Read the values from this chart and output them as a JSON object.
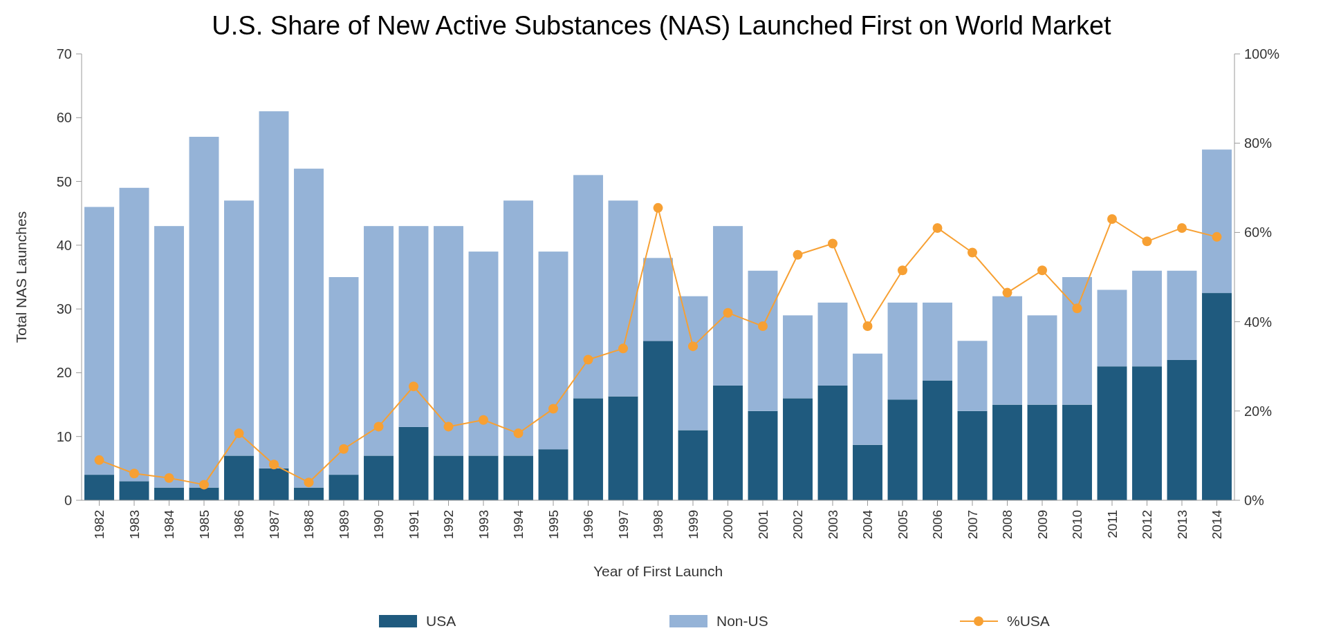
{
  "chart_data": {
    "type": "bar",
    "title": "U.S. Share of New Active Substances (NAS) Launched First on World Market",
    "xlabel": "Year of First Launch",
    "ylabel": "Total NAS Launches",
    "stacked": true,
    "legend": "bottom",
    "marker": "circle",
    "categories": [
      "1982",
      "1983",
      "1984",
      "1985",
      "1986",
      "1987",
      "1988",
      "1989",
      "1990",
      "1991",
      "1992",
      "1993",
      "1994",
      "1995",
      "1996",
      "1997",
      "1998",
      "1999",
      "2000",
      "2001",
      "2002",
      "2003",
      "2004",
      "2005",
      "2006",
      "2007",
      "2008",
      "2009",
      "2010",
      "2011",
      "2012",
      "2013",
      "2014"
    ],
    "ylim": [
      0,
      70
    ],
    "yticks": [
      0,
      10,
      20,
      30,
      40,
      50,
      60,
      70
    ],
    "y2lim": [
      0,
      100
    ],
    "y2ticks": [
      {
        "value": 0,
        "label": "0%"
      },
      {
        "value": 20,
        "label": "20%"
      },
      {
        "value": 40,
        "label": "40%"
      },
      {
        "value": 60,
        "label": "60%"
      },
      {
        "value": 80,
        "label": "80%"
      },
      {
        "value": 100,
        "label": "100%"
      }
    ],
    "series": [
      {
        "name": "USA",
        "color": "#1f5a7e",
        "values": [
          4,
          3,
          2,
          2,
          7,
          5,
          2,
          4,
          7,
          11.5,
          7,
          7,
          7,
          8,
          16,
          16.3,
          25,
          11,
          18,
          14,
          16,
          18,
          8.7,
          15.8,
          18.8,
          14,
          15,
          15,
          15,
          21,
          21,
          22,
          32.5
        ]
      },
      {
        "name": "Non-US",
        "color": "#95b3d7",
        "values": [
          42,
          46,
          41,
          55,
          40,
          56,
          50,
          31,
          36,
          31.5,
          36,
          32,
          40,
          31,
          35,
          30.7,
          13,
          21,
          25,
          22,
          13,
          13,
          14.3,
          15.2,
          12.2,
          11,
          17,
          14,
          20,
          12,
          15,
          14,
          22.5
        ]
      },
      {
        "name": "%USA",
        "type": "line",
        "axis": "y2",
        "color": "#f7a033",
        "values": [
          9,
          6,
          5,
          3.5,
          15,
          8,
          4,
          11.5,
          16.5,
          25.5,
          16.5,
          18,
          15,
          20.5,
          31.5,
          34,
          65.5,
          34.5,
          42,
          39,
          55,
          57.5,
          39,
          51.5,
          61,
          55.5,
          46.5,
          51.5,
          43,
          63,
          58,
          61,
          59
        ]
      }
    ]
  }
}
